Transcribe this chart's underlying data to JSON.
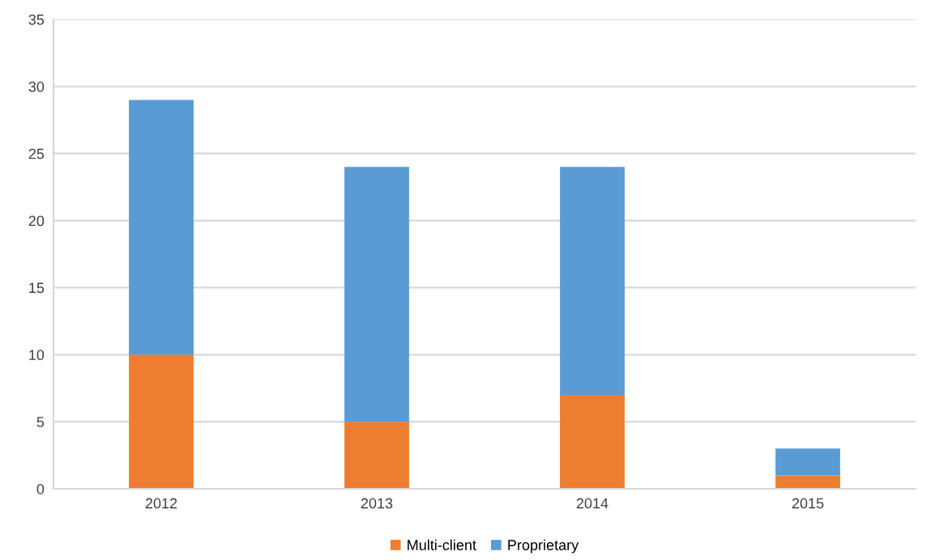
{
  "chart_data": {
    "type": "bar",
    "stacked": true,
    "categories": [
      "2012",
      "2013",
      "2014",
      "2015"
    ],
    "series": [
      {
        "name": "Multi-client",
        "color": "#ed7d31",
        "values": [
          10,
          5,
          7,
          1
        ]
      },
      {
        "name": "Proprietary",
        "color": "#5b9bd5",
        "values": [
          19,
          19,
          17,
          2
        ]
      }
    ],
    "ylim": [
      0,
      35
    ],
    "yticks": [
      0,
      5,
      10,
      15,
      20,
      25,
      30,
      35
    ],
    "grid": "y",
    "legend": "bottom"
  }
}
